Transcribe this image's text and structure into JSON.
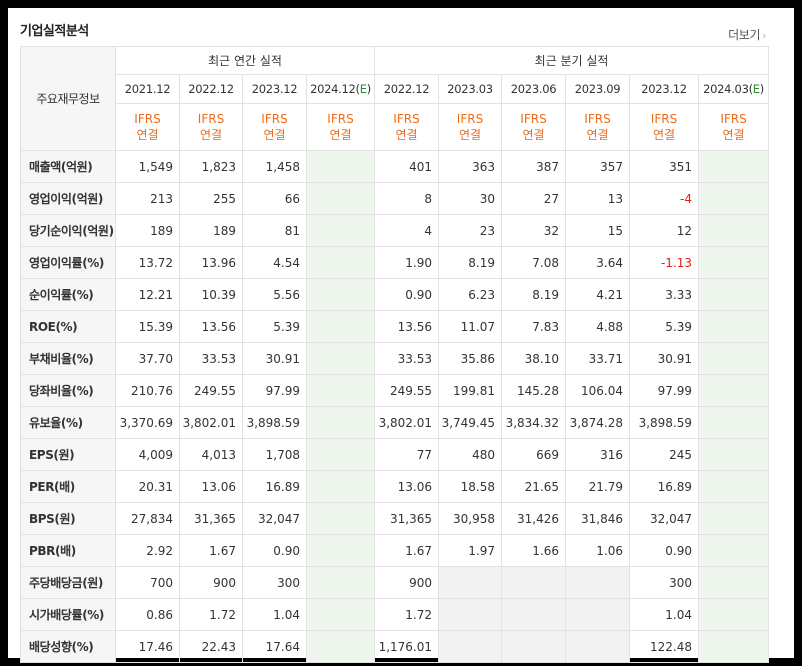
{
  "title": "기업실적분석",
  "more_label": "더보기",
  "corner_label": "주요재무정보",
  "group_annual": "최근 연간 실적",
  "group_quarter": "최근 분기 실적",
  "ifrs": "IFRS",
  "consol": "연결",
  "periods": [
    "2021.12",
    "2022.12",
    "2023.12",
    "2024.12(E)",
    "2022.12",
    "2023.03",
    "2023.06",
    "2023.09",
    "2023.12",
    "2024.03(E)"
  ],
  "rows": [
    {
      "label": "매출액(억원)",
      "values": [
        "1,549",
        "1,823",
        "1,458",
        "",
        "401",
        "363",
        "387",
        "357",
        "351",
        ""
      ]
    },
    {
      "label": "영업이익(억원)",
      "values": [
        "213",
        "255",
        "66",
        "",
        "8",
        "30",
        "27",
        "13",
        "-4",
        ""
      ]
    },
    {
      "label": "당기순이익(억원)",
      "values": [
        "189",
        "189",
        "81",
        "",
        "4",
        "23",
        "32",
        "15",
        "12",
        ""
      ]
    },
    {
      "label": "영업이익률(%)",
      "values": [
        "13.72",
        "13.96",
        "4.54",
        "",
        "1.90",
        "8.19",
        "7.08",
        "3.64",
        "-1.13",
        ""
      ]
    },
    {
      "label": "순이익률(%)",
      "values": [
        "12.21",
        "10.39",
        "5.56",
        "",
        "0.90",
        "6.23",
        "8.19",
        "4.21",
        "3.33",
        ""
      ]
    },
    {
      "label": "ROE(%)",
      "values": [
        "15.39",
        "13.56",
        "5.39",
        "",
        "13.56",
        "11.07",
        "7.83",
        "4.88",
        "5.39",
        ""
      ]
    },
    {
      "label": "부채비율(%)",
      "values": [
        "37.70",
        "33.53",
        "30.91",
        "",
        "33.53",
        "35.86",
        "38.10",
        "33.71",
        "30.91",
        ""
      ]
    },
    {
      "label": "당좌비율(%)",
      "values": [
        "210.76",
        "249.55",
        "97.99",
        "",
        "249.55",
        "199.81",
        "145.28",
        "106.04",
        "97.99",
        ""
      ]
    },
    {
      "label": "유보율(%)",
      "values": [
        "3,370.69",
        "3,802.01",
        "3,898.59",
        "",
        "3,802.01",
        "3,749.45",
        "3,834.32",
        "3,874.28",
        "3,898.59",
        ""
      ]
    },
    {
      "label": "EPS(원)",
      "values": [
        "4,009",
        "4,013",
        "1,708",
        "",
        "77",
        "480",
        "669",
        "316",
        "245",
        ""
      ]
    },
    {
      "label": "PER(배)",
      "values": [
        "20.31",
        "13.06",
        "16.89",
        "",
        "13.06",
        "18.58",
        "21.65",
        "21.79",
        "16.89",
        ""
      ]
    },
    {
      "label": "BPS(원)",
      "values": [
        "27,834",
        "31,365",
        "32,047",
        "",
        "31,365",
        "30,958",
        "31,426",
        "31,846",
        "32,047",
        ""
      ]
    },
    {
      "label": "PBR(배)",
      "values": [
        "2.92",
        "1.67",
        "0.90",
        "",
        "1.67",
        "1.97",
        "1.66",
        "1.06",
        "0.90",
        ""
      ]
    },
    {
      "label": "주당배당금(원)",
      "values": [
        "700",
        "900",
        "300",
        "",
        "900",
        "",
        "",
        "",
        "300",
        ""
      ]
    },
    {
      "label": "시가배당률(%)",
      "values": [
        "0.86",
        "1.72",
        "1.04",
        "",
        "1.72",
        "",
        "",
        "",
        "1.04",
        ""
      ]
    },
    {
      "label": "배당성향(%)",
      "values": [
        "17.46",
        "22.43",
        "17.64",
        "",
        "1,176.01",
        "",
        "",
        "",
        "122.48",
        ""
      ]
    }
  ]
}
